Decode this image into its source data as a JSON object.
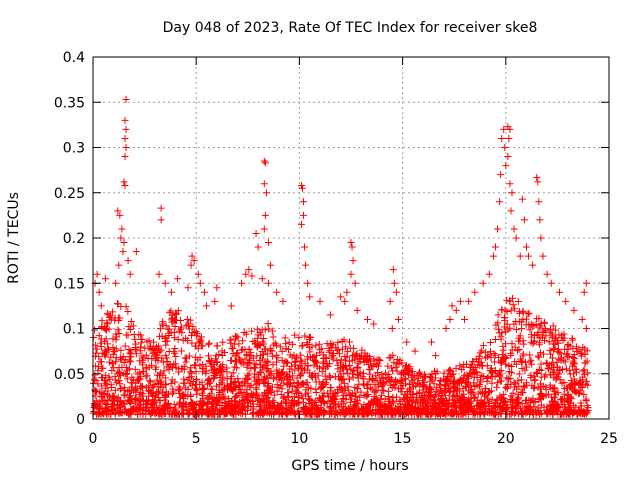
{
  "chart_data": {
    "type": "scatter",
    "title": "Day 048 of 2023, Rate Of TEC Index for receiver ske8",
    "xlabel": "GPS time / hours",
    "ylabel": "ROTI / TECUs",
    "xlim": [
      0,
      25
    ],
    "ylim": [
      0,
      0.4
    ],
    "xticks": [
      0,
      5,
      10,
      15,
      20,
      25
    ],
    "yticks": [
      0,
      0.05,
      0.1,
      0.15,
      0.2,
      0.25,
      0.3,
      0.35,
      0.4
    ],
    "grid": true,
    "legend": "none",
    "marker": "plus",
    "color": "#ff0000",
    "x_extent": [
      0,
      24
    ],
    "points": [
      [
        1.6,
        0.353
      ],
      [
        1.55,
        0.33
      ],
      [
        1.6,
        0.32
      ],
      [
        1.55,
        0.31
      ],
      [
        1.6,
        0.3
      ],
      [
        1.55,
        0.29
      ],
      [
        1.5,
        0.262
      ],
      [
        1.55,
        0.258
      ],
      [
        1.2,
        0.23
      ],
      [
        1.3,
        0.225
      ],
      [
        1.4,
        0.21
      ],
      [
        1.35,
        0.2
      ],
      [
        1.5,
        0.195
      ],
      [
        1.45,
        0.185
      ],
      [
        1.25,
        0.17
      ],
      [
        1.7,
        0.175
      ],
      [
        1.8,
        0.16
      ],
      [
        2.1,
        0.185
      ],
      [
        1.1,
        0.15
      ],
      [
        0.2,
        0.16
      ],
      [
        0.1,
        0.15
      ],
      [
        0.3,
        0.14
      ],
      [
        0.6,
        0.155
      ],
      [
        0.4,
        0.125
      ],
      [
        3.3,
        0.233
      ],
      [
        3.3,
        0.22
      ],
      [
        3.2,
        0.16
      ],
      [
        3.5,
        0.15
      ],
      [
        3.8,
        0.14
      ],
      [
        4.1,
        0.155
      ],
      [
        4.6,
        0.145
      ],
      [
        4.75,
        0.17
      ],
      [
        4.8,
        0.18
      ],
      [
        4.9,
        0.175
      ],
      [
        5.1,
        0.16
      ],
      [
        5.2,
        0.15
      ],
      [
        5.4,
        0.14
      ],
      [
        5.5,
        0.125
      ],
      [
        5.9,
        0.13
      ],
      [
        6.0,
        0.145
      ],
      [
        6.7,
        0.125
      ],
      [
        7.2,
        0.15
      ],
      [
        7.4,
        0.16
      ],
      [
        7.55,
        0.165
      ],
      [
        7.7,
        0.158
      ],
      [
        7.9,
        0.205
      ],
      [
        8.0,
        0.19
      ],
      [
        8.2,
        0.155
      ],
      [
        8.3,
        0.285
      ],
      [
        8.35,
        0.283
      ],
      [
        8.3,
        0.26
      ],
      [
        8.4,
        0.25
      ],
      [
        8.35,
        0.225
      ],
      [
        8.3,
        0.21
      ],
      [
        8.5,
        0.195
      ],
      [
        8.6,
        0.17
      ],
      [
        8.5,
        0.15
      ],
      [
        8.9,
        0.14
      ],
      [
        9.2,
        0.13
      ],
      [
        10.1,
        0.258
      ],
      [
        10.15,
        0.255
      ],
      [
        10.2,
        0.24
      ],
      [
        10.2,
        0.225
      ],
      [
        10.1,
        0.215
      ],
      [
        10.25,
        0.19
      ],
      [
        10.3,
        0.17
      ],
      [
        10.4,
        0.15
      ],
      [
        10.5,
        0.135
      ],
      [
        11.0,
        0.13
      ],
      [
        11.5,
        0.115
      ],
      [
        12.0,
        0.135
      ],
      [
        12.2,
        0.13
      ],
      [
        12.3,
        0.14
      ],
      [
        12.5,
        0.195
      ],
      [
        12.55,
        0.19
      ],
      [
        12.6,
        0.175
      ],
      [
        12.5,
        0.16
      ],
      [
        12.7,
        0.15
      ],
      [
        12.8,
        0.12
      ],
      [
        13.3,
        0.11
      ],
      [
        13.6,
        0.105
      ],
      [
        14.5,
        0.1
      ],
      [
        14.4,
        0.13
      ],
      [
        14.55,
        0.165
      ],
      [
        14.6,
        0.15
      ],
      [
        14.7,
        0.14
      ],
      [
        14.8,
        0.11
      ],
      [
        15.2,
        0.085
      ],
      [
        15.6,
        0.075
      ],
      [
        16.4,
        0.085
      ],
      [
        16.6,
        0.07
      ],
      [
        17.1,
        0.1
      ],
      [
        17.3,
        0.11
      ],
      [
        17.4,
        0.125
      ],
      [
        17.6,
        0.12
      ],
      [
        17.8,
        0.13
      ],
      [
        18.0,
        0.11
      ],
      [
        18.2,
        0.13
      ],
      [
        18.5,
        0.14
      ],
      [
        18.9,
        0.15
      ],
      [
        19.2,
        0.16
      ],
      [
        19.4,
        0.18
      ],
      [
        19.5,
        0.19
      ],
      [
        19.6,
        0.21
      ],
      [
        19.7,
        0.24
      ],
      [
        19.75,
        0.27
      ],
      [
        19.8,
        0.31
      ],
      [
        19.9,
        0.32
      ],
      [
        19.95,
        0.3
      ],
      [
        20.0,
        0.28
      ],
      [
        20.1,
        0.323
      ],
      [
        20.2,
        0.32
      ],
      [
        20.15,
        0.31
      ],
      [
        20.1,
        0.29
      ],
      [
        20.2,
        0.26
      ],
      [
        20.3,
        0.25
      ],
      [
        20.25,
        0.23
      ],
      [
        20.4,
        0.21
      ],
      [
        20.5,
        0.2
      ],
      [
        20.7,
        0.18
      ],
      [
        20.8,
        0.243
      ],
      [
        20.9,
        0.22
      ],
      [
        21.0,
        0.19
      ],
      [
        21.1,
        0.18
      ],
      [
        21.3,
        0.17
      ],
      [
        21.5,
        0.267
      ],
      [
        21.55,
        0.262
      ],
      [
        21.6,
        0.24
      ],
      [
        21.65,
        0.22
      ],
      [
        21.7,
        0.2
      ],
      [
        21.8,
        0.18
      ],
      [
        22.0,
        0.16
      ],
      [
        22.2,
        0.15
      ],
      [
        22.6,
        0.14
      ],
      [
        22.9,
        0.13
      ],
      [
        23.3,
        0.12
      ],
      [
        23.7,
        0.11
      ],
      [
        23.9,
        0.15
      ],
      [
        23.8,
        0.14
      ],
      [
        23.9,
        0.1
      ]
    ],
    "density_profile": [
      [
        0,
        0.06
      ],
      [
        1,
        0.075
      ],
      [
        1.5,
        0.085
      ],
      [
        2,
        0.06
      ],
      [
        2.5,
        0.055
      ],
      [
        3,
        0.05
      ],
      [
        3.5,
        0.07
      ],
      [
        4,
        0.075
      ],
      [
        4.5,
        0.07
      ],
      [
        5,
        0.06
      ],
      [
        5.5,
        0.055
      ],
      [
        6,
        0.05
      ],
      [
        7,
        0.055
      ],
      [
        8,
        0.06
      ],
      [
        8.5,
        0.065
      ],
      [
        9,
        0.055
      ],
      [
        10,
        0.055
      ],
      [
        10.5,
        0.06
      ],
      [
        11,
        0.05
      ],
      [
        12,
        0.05
      ],
      [
        12.5,
        0.055
      ],
      [
        13,
        0.045
      ],
      [
        14,
        0.04
      ],
      [
        14.5,
        0.045
      ],
      [
        15,
        0.035
      ],
      [
        16,
        0.03
      ],
      [
        17,
        0.03
      ],
      [
        18,
        0.035
      ],
      [
        18.5,
        0.04
      ],
      [
        19,
        0.05
      ],
      [
        19.5,
        0.065
      ],
      [
        20,
        0.08
      ],
      [
        20.5,
        0.085
      ],
      [
        21,
        0.075
      ],
      [
        21.5,
        0.07
      ],
      [
        22,
        0.065
      ],
      [
        23,
        0.055
      ],
      [
        24,
        0.045
      ]
    ]
  }
}
